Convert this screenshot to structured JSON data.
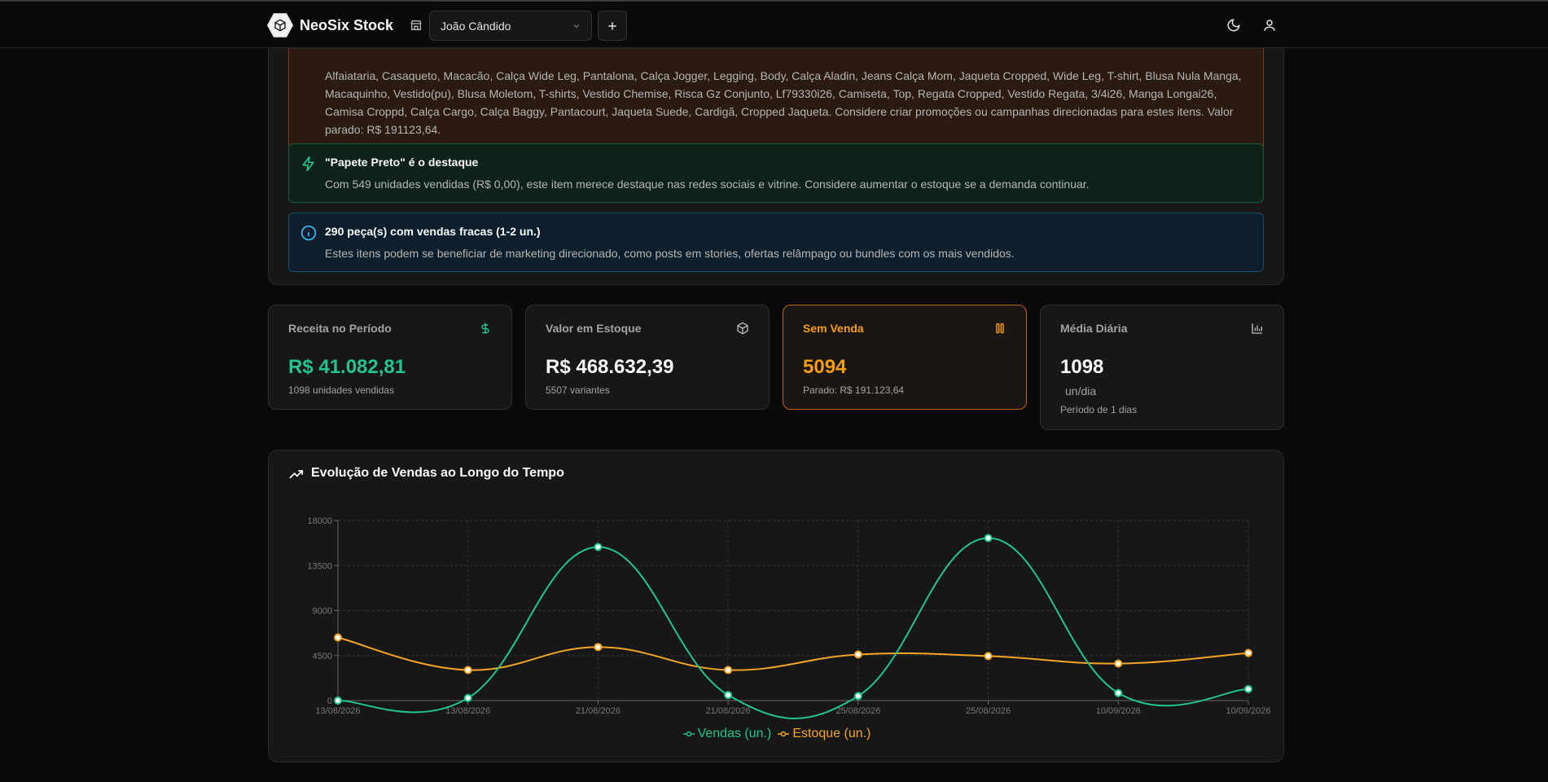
{
  "app": {
    "brand": "NeoSix Stock"
  },
  "header": {
    "store_name": "João Cândido"
  },
  "insights": {
    "orange_text": "Alfaiataria, Casaqueto, Macacão, Calça Wide Leg, Pantalona, Calça Jogger, Legging, Body, Calça Aladin, Jeans Calça Mom, Jaqueta Cropped, Wide Leg, T-shirt, Blusa Nula Manga, Macaquinho, Vestido(pu), Blusa Moletom, T-shirts, Vestido Chemise, Risca Gz Conjunto, Lf79330i26, Camiseta, Top, Regata Cropped, Vestido Regata, 3/4i26, Manga Longai26, Camisa Croppd, Calça Cargo, Calça Baggy, Pantacourt, Jaqueta Suede, Cardigã, Cropped Jaqueta. Considere criar promoções ou campanhas direcionadas para estes itens. Valor parado: R$ 191123,64.",
    "green_title": "\"Papete Preto\" é o destaque",
    "green_text": "Com 549 unidades vendidas (R$ 0,00), este item merece destaque nas redes sociais e vitrine. Considere aumentar o estoque se a demanda continuar.",
    "blue_title": "290 peça(s) com vendas fracas (1-2 un.)",
    "blue_text": "Estes itens podem se beneficiar de marketing direcionado, como posts em stories, ofertas relâmpago ou bundles com os mais vendidos."
  },
  "kpis": {
    "revenue": {
      "label": "Receita no Período",
      "value": "R$ 41.082,81",
      "sub": "1098 unidades vendidas",
      "icon": "dollar-icon"
    },
    "stock_value": {
      "label": "Valor em Estoque",
      "value": "R$ 468.632,39",
      "sub": "5507 variantes",
      "icon": "box-icon"
    },
    "no_sale": {
      "label": "Sem Venda",
      "value": "5094",
      "sub": "Parado: R$ 191.123,64",
      "icon": "pause-icon"
    },
    "daily_avg": {
      "label": "Média Diária",
      "value": "1098",
      "unit": "un/dia",
      "sub": "Período de 1 dias",
      "icon": "bar-chart-icon"
    }
  },
  "chart": {
    "title": "Evolução de Vendas ao Longo do Tempo"
  },
  "chart_data": {
    "type": "line",
    "x": [
      "13/08/2026",
      "13/08/2026",
      "21/08/2026",
      "21/08/2026",
      "25/08/2026",
      "25/08/2026",
      "10/09/2026",
      "10/09/2026"
    ],
    "yticks": [
      "0",
      "4500",
      "9000",
      "13500",
      "18000"
    ],
    "ylim": [
      0,
      18000
    ],
    "grid": true,
    "legend_position": "bottom",
    "series": [
      {
        "name": "Vendas (un.)",
        "color": "#22c58b",
        "values": [
          0,
          250,
          15350,
          550,
          450,
          16250,
          750,
          1150
        ]
      },
      {
        "name": "Estoque (un.)",
        "color": "#f5a524",
        "values": [
          6300,
          3050,
          5350,
          3050,
          4600,
          4450,
          3700,
          4750
        ]
      }
    ]
  }
}
